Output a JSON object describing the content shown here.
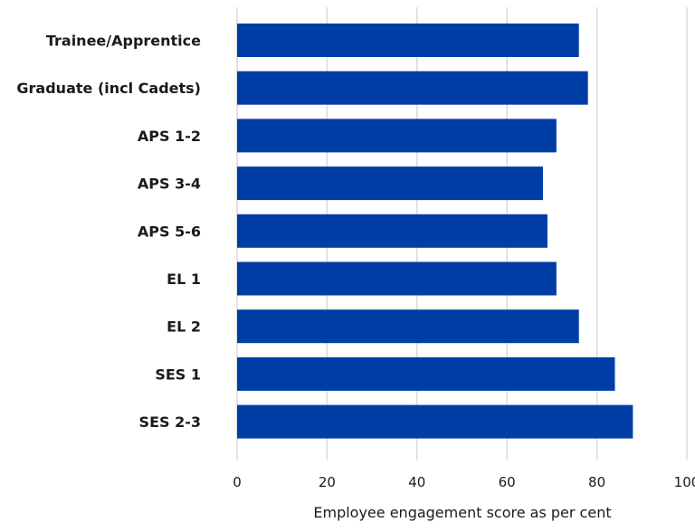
{
  "chart_data": {
    "type": "bar",
    "orientation": "horizontal",
    "categories": [
      "Trainee/Apprentice",
      "Graduate (incl Cadets)",
      "APS 1-2",
      "APS 3-4",
      "APS 5-6",
      "EL 1",
      "EL 2",
      "SES 1",
      "SES 2-3"
    ],
    "values": [
      76,
      78,
      71,
      68,
      69,
      71,
      76,
      84,
      88
    ],
    "title": "",
    "xlabel": "Employee engagement score as per cent",
    "ylabel": "",
    "xlim": [
      0,
      100
    ],
    "xticks": [
      0,
      20,
      40,
      60,
      80,
      100
    ],
    "grid": "vertical",
    "bar_color": "#003da5",
    "grid_color": "#d9d9d9"
  }
}
